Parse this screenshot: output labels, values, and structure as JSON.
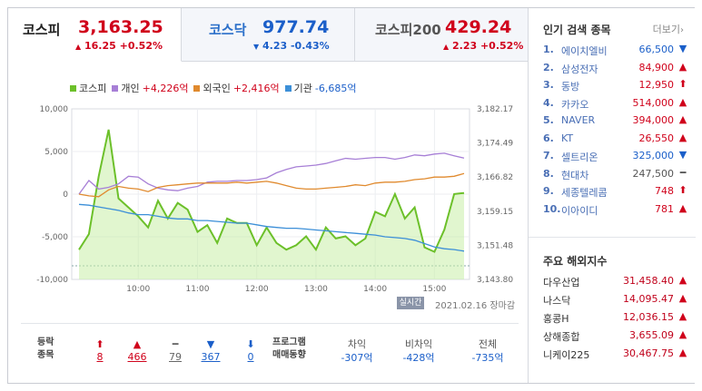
{
  "tabs": [
    {
      "name": "코스피",
      "value": "3,163.25",
      "dir": "up",
      "arrow": "▲",
      "change": "16.25 +0.52%"
    },
    {
      "name": "코스닥",
      "value": "977.74",
      "dir": "down",
      "arrow": "▼",
      "change": "4.23 -0.43%"
    },
    {
      "name": "코스피200",
      "value": "429.24",
      "dir": "up",
      "arrow": "▲",
      "change": "2.23 +0.52%"
    }
  ],
  "legend": [
    {
      "name": "코스피",
      "value": "",
      "color": "#6cc02a"
    },
    {
      "name": "개인",
      "value": "+4,226억",
      "color": "#a77fd6"
    },
    {
      "name": "외국인",
      "value": "+2,416억",
      "color": "#e08a2e"
    },
    {
      "name": "기관",
      "value": "-6,685억",
      "color": "#3c8fd8"
    }
  ],
  "realtime_label": "실시간",
  "stamp": "2021.02.16 장마감",
  "chart_data": {
    "type": "line",
    "left_ticks": [
      "10,000",
      "5,000",
      "0",
      "-5,000",
      "-10,000"
    ],
    "right_ticks": [
      "3,182.17",
      "3,174.49",
      "3,166.82",
      "3,159.15",
      "3,151.48",
      "3,143.80"
    ],
    "x_ticks": [
      "10:00",
      "11:00",
      "12:00",
      "13:00",
      "14:00",
      "15:00"
    ],
    "ylim_left": [
      -10000,
      10000
    ],
    "ylim_right": [
      3143.8,
      3182.17
    ],
    "x": [
      "09:00",
      "09:10",
      "09:20",
      "09:30",
      "09:40",
      "09:50",
      "10:00",
      "10:10",
      "10:20",
      "10:30",
      "10:40",
      "10:50",
      "11:00",
      "11:10",
      "11:20",
      "11:30",
      "11:40",
      "11:50",
      "12:00",
      "12:10",
      "12:20",
      "12:30",
      "12:40",
      "12:50",
      "13:00",
      "13:10",
      "13:20",
      "13:30",
      "13:40",
      "13:50",
      "14:00",
      "14:10",
      "14:20",
      "14:30",
      "14:40",
      "14:50",
      "15:00",
      "15:10",
      "15:20",
      "15:30"
    ],
    "series": [
      {
        "name": "코스피",
        "axis": "right",
        "color": "#6cc02a",
        "values": [
          3150.5,
          3154.0,
          3167.0,
          3177.5,
          3162.0,
          3160.0,
          3158.0,
          3155.5,
          3161.5,
          3157.5,
          3161.0,
          3159.5,
          3154.5,
          3156.0,
          3152.0,
          3157.5,
          3156.5,
          3156.5,
          3151.5,
          3155.5,
          3152.0,
          3150.5,
          3151.5,
          3153.5,
          3150.5,
          3155.5,
          3153.0,
          3153.5,
          3151.5,
          3153.0,
          3159.0,
          3158.0,
          3163.0,
          3157.5,
          3160.0,
          3151.0,
          3150.0,
          3155.0,
          3163.0,
          3163.25
        ]
      },
      {
        "name": "개인",
        "axis": "left",
        "color": "#a77fd6",
        "values": [
          0,
          1600,
          600,
          800,
          1200,
          2100,
          2000,
          1200,
          700,
          500,
          400,
          700,
          900,
          1400,
          1500,
          1500,
          1600,
          1600,
          1700,
          1900,
          2500,
          2900,
          3200,
          3300,
          3400,
          3600,
          3900,
          4200,
          4100,
          4200,
          4300,
          4300,
          4100,
          4300,
          4600,
          4500,
          4700,
          4800,
          4500,
          4226
        ]
      },
      {
        "name": "외국인",
        "axis": "left",
        "color": "#e08a2e",
        "values": [
          0,
          -200,
          -300,
          500,
          900,
          700,
          600,
          300,
          800,
          1000,
          1100,
          1200,
          1300,
          1300,
          1300,
          1300,
          1400,
          1300,
          1400,
          1500,
          1300,
          1000,
          700,
          600,
          600,
          700,
          800,
          900,
          1100,
          1000,
          1300,
          1400,
          1400,
          1500,
          1700,
          1800,
          2000,
          2000,
          2100,
          2416
        ]
      },
      {
        "name": "기관",
        "axis": "left",
        "color": "#3c8fd8",
        "values": [
          -1200,
          -1300,
          -1500,
          -1700,
          -1900,
          -2200,
          -2400,
          -2400,
          -2600,
          -2800,
          -2900,
          -2900,
          -3100,
          -3100,
          -3200,
          -3300,
          -3400,
          -3400,
          -3600,
          -3800,
          -3900,
          -4000,
          -4000,
          -4100,
          -4200,
          -4300,
          -4400,
          -4500,
          -4600,
          -4700,
          -4800,
          -5000,
          -5100,
          -5200,
          -5400,
          -5800,
          -6200,
          -6400,
          -6500,
          -6685
        ]
      }
    ]
  },
  "stats": {
    "label_line1": "등락",
    "label_line2": "종목",
    "items": [
      {
        "icon": "⬆",
        "value": "8",
        "color": "#d0021b"
      },
      {
        "icon": "▲",
        "value": "466",
        "color": "#d0021b"
      },
      {
        "icon": "━",
        "value": "79",
        "color": "#666"
      },
      {
        "icon": "▼",
        "value": "367",
        "color": "#1b5fc9"
      },
      {
        "icon": "⬇",
        "value": "0",
        "color": "#1b5fc9"
      }
    ],
    "program_line1": "프로그램",
    "program_line2": "매매동향",
    "program": [
      {
        "header": "차익",
        "value": "-307억"
      },
      {
        "header": "비차익",
        "value": "-428억"
      },
      {
        "header": "전체",
        "value": "-735억"
      }
    ]
  },
  "popular": {
    "title": "인기 검색 종목",
    "more": "더보기",
    "items": [
      {
        "rank": "1.",
        "name": "에이치엘비",
        "price": "66,500",
        "icon": "▼",
        "color": "#1b5fc9"
      },
      {
        "rank": "2.",
        "name": "삼성전자",
        "price": "84,900",
        "icon": "▲",
        "color": "#d0021b"
      },
      {
        "rank": "3.",
        "name": "동방",
        "price": "12,950",
        "icon": "⬆",
        "color": "#d0021b"
      },
      {
        "rank": "4.",
        "name": "카카오",
        "price": "514,000",
        "icon": "▲",
        "color": "#d0021b"
      },
      {
        "rank": "5.",
        "name": "NAVER",
        "price": "394,000",
        "icon": "▲",
        "color": "#d0021b"
      },
      {
        "rank": "6.",
        "name": "KT",
        "price": "26,550",
        "icon": "▲",
        "color": "#d0021b"
      },
      {
        "rank": "7.",
        "name": "셀트리온",
        "price": "325,000",
        "icon": "▼",
        "color": "#1b5fc9"
      },
      {
        "rank": "8.",
        "name": "현대차",
        "price": "247,500",
        "icon": "━",
        "color": "#555"
      },
      {
        "rank": "9.",
        "name": "세종텔레콤",
        "price": "748",
        "icon": "⬆",
        "color": "#d0021b"
      },
      {
        "rank": "10.",
        "name": "이아이디",
        "price": "781",
        "icon": "▲",
        "color": "#d0021b"
      }
    ]
  },
  "overseas": {
    "title": "주요 해외지수",
    "items": [
      {
        "name": "다우산업",
        "value": "31,458.40",
        "icon": "▲"
      },
      {
        "name": "나스닥",
        "value": "14,095.47",
        "icon": "▲"
      },
      {
        "name": "홍콩H",
        "value": "12,036.15",
        "icon": "▲"
      },
      {
        "name": "상해종합",
        "value": "3,655.09",
        "icon": "▲"
      },
      {
        "name": "니케이225",
        "value": "30,467.75",
        "icon": "▲"
      }
    ]
  }
}
